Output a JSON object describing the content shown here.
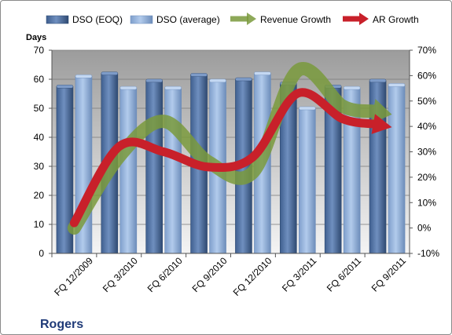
{
  "chart_data": {
    "type": "bar",
    "title": "",
    "ylabel": "Days",
    "y2label": "",
    "brand": "Rogers",
    "categories": [
      "FQ 12/2009",
      "FQ 3/2010",
      "FQ 6/2010",
      "FQ 9/2010",
      "FQ 12/2010",
      "FQ 3/2011",
      "FQ 6/2011",
      "FQ 9/2011"
    ],
    "ylim": [
      0,
      70
    ],
    "y_ticks": [
      "0",
      "10",
      "20",
      "30",
      "40",
      "50",
      "60",
      "70"
    ],
    "y2lim": [
      -10,
      70
    ],
    "y2_ticks": [
      "-10%",
      "0%",
      "10%",
      "20%",
      "30%",
      "40%",
      "50%",
      "60%",
      "70%"
    ],
    "legend_position": "top",
    "grid": true,
    "series": [
      {
        "name": "DSO (EOQ)",
        "kind": "bar",
        "values": [
          57.5,
          62,
          59.5,
          61.5,
          60,
          58.5,
          57.5,
          59.5
        ],
        "color": "#5777a6"
      },
      {
        "name": "DSO (average)",
        "kind": "bar",
        "values": [
          61,
          57,
          57,
          59.5,
          62,
          50,
          57,
          58
        ],
        "color": "#92b2dd"
      },
      {
        "name": "Revenue Growth",
        "kind": "line",
        "axis": "secondary",
        "values": [
          0,
          28,
          42,
          26,
          22,
          62,
          48,
          45
        ],
        "color": "#7a9a3c"
      },
      {
        "name": "AR Growth",
        "kind": "line",
        "axis": "secondary",
        "values": [
          2,
          32,
          30,
          24,
          28,
          53,
          43,
          40
        ],
        "color": "#c8202a"
      }
    ]
  }
}
